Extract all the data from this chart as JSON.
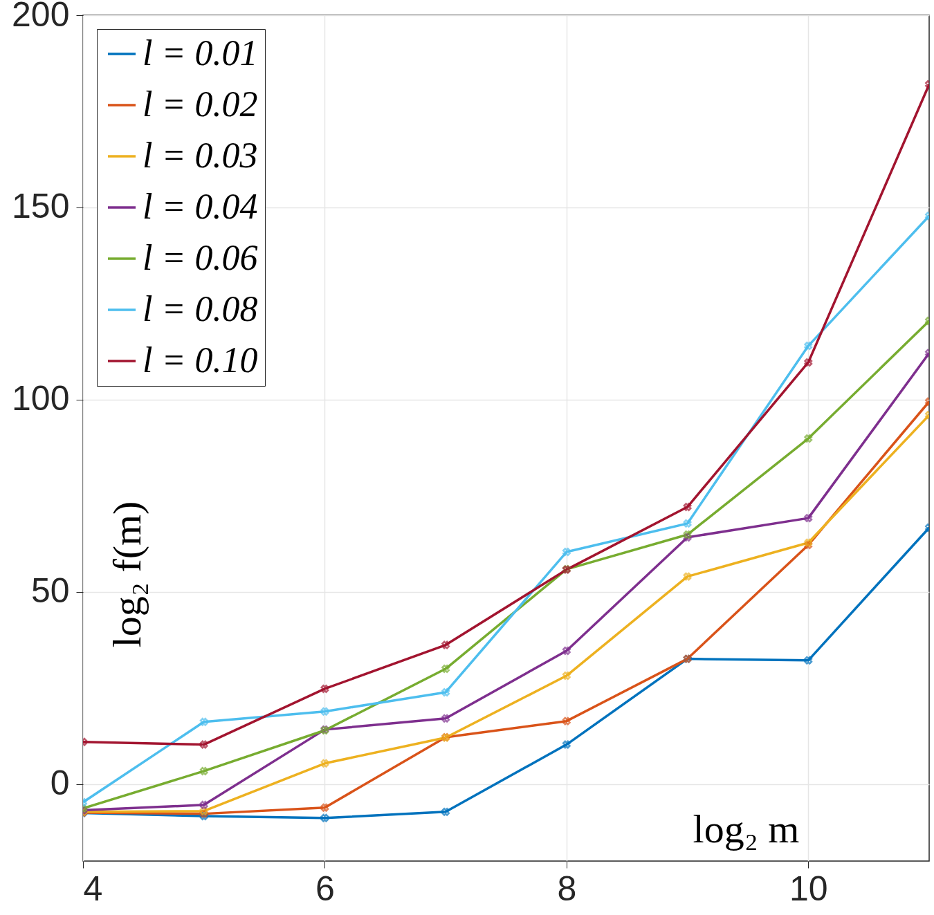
{
  "chart_data": {
    "type": "line",
    "xlabel": "log₂ m",
    "ylabel": "log₂ f(m)",
    "x": [
      4,
      5,
      6,
      7,
      8,
      9,
      10,
      11
    ],
    "xlim": [
      4,
      11
    ],
    "xticks": [
      4,
      6,
      8,
      10
    ],
    "ylim": [
      -20,
      200
    ],
    "yticks": [
      0,
      50,
      100,
      150,
      200
    ],
    "grid": true,
    "legend": "top left",
    "marker": "cross",
    "line_style": "solid",
    "series": [
      {
        "name": "l = 0.01",
        "color": "#0072bd",
        "values": [
          -7.5,
          -8.3,
          -8.8,
          -7.2,
          10.3,
          32.6,
          32.2,
          66.7
        ]
      },
      {
        "name": "l = 0.02",
        "color": "#d95319",
        "values": [
          -7.4,
          -7.7,
          -6.1,
          12.2,
          16.4,
          32.6,
          62.2,
          99.5
        ]
      },
      {
        "name": "l = 0.03",
        "color": "#edb120",
        "values": [
          -7.2,
          -7.0,
          5.4,
          12.1,
          28.2,
          54.0,
          62.8,
          96.0
        ]
      },
      {
        "name": "l = 0.04",
        "color": "#7e2f8e",
        "values": [
          -6.8,
          -5.4,
          14.2,
          17.1,
          34.7,
          64.2,
          69.2,
          112.1
        ]
      },
      {
        "name": "l = 0.06",
        "color": "#77ac30",
        "values": [
          -6.3,
          3.4,
          14.0,
          30.0,
          55.9,
          64.9,
          89.9,
          120.5
        ]
      },
      {
        "name": "l = 0.08",
        "color": "#4dbeee",
        "values": [
          -4.7,
          16.2,
          18.9,
          23.9,
          60.4,
          67.8,
          114.0,
          147.8
        ]
      },
      {
        "name": "l = 0.10",
        "color": "#a2142f",
        "values": [
          11.0,
          10.3,
          24.8,
          36.2,
          55.8,
          72.1,
          109.7,
          182.0
        ]
      }
    ]
  }
}
